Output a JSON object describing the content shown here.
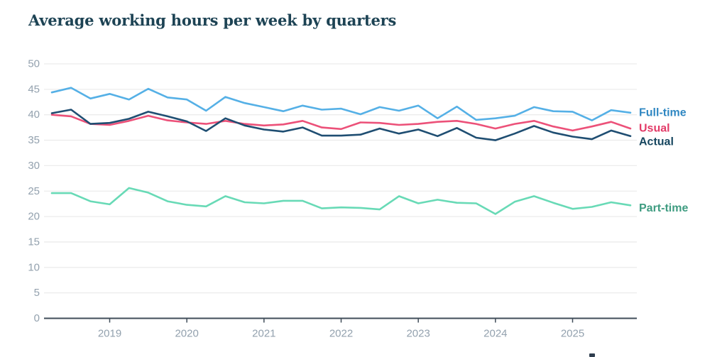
{
  "title": "Average working hours per week by quarters",
  "colors": {
    "title": "#1d4354",
    "grid": "#ececec",
    "axis": "#3f4c58",
    "tick_text": "#93a1ae"
  },
  "chart_data": {
    "type": "line",
    "title": "Average working hours per week by quarters",
    "xlabel": "",
    "ylabel": "",
    "ylim": [
      0,
      50
    ],
    "grid": true,
    "legend_position": "right-end-of-lines",
    "y_ticks": [
      0,
      5,
      10,
      15,
      20,
      25,
      30,
      35,
      40,
      45,
      50
    ],
    "x_ticks": [
      {
        "label": "2019",
        "index": 3
      },
      {
        "label": "2020",
        "index": 7
      },
      {
        "label": "2021",
        "index": 11
      },
      {
        "label": "2022",
        "index": 15
      },
      {
        "label": "2023",
        "index": 19
      },
      {
        "label": "2024",
        "index": 23
      },
      {
        "label": "2025",
        "index": 27
      }
    ],
    "categories": [
      "2018 Q2",
      "2018 Q3",
      "2018 Q4",
      "2019 Q1",
      "2019 Q2",
      "2019 Q3",
      "2019 Q4",
      "2020 Q1",
      "2020 Q2",
      "2020 Q3",
      "2020 Q4",
      "2021 Q1",
      "2021 Q2",
      "2021 Q3",
      "2021 Q4",
      "2022 Q1",
      "2022 Q2",
      "2022 Q3",
      "2022 Q4",
      "2023 Q1",
      "2023 Q2",
      "2023 Q3",
      "2023 Q4",
      "2024 Q1",
      "2024 Q2",
      "2024 Q3",
      "2024 Q4",
      "2025 Q1",
      "2025 Q2",
      "2025 Q3",
      "2025 Q4"
    ],
    "series": [
      {
        "name": "full-time",
        "label": "Full-time",
        "color": "#55b0e6",
        "label_color": "#2f87c2",
        "values": [
          44.4,
          45.3,
          43.2,
          44.1,
          43.0,
          45.1,
          43.4,
          43.0,
          40.8,
          43.5,
          42.3,
          41.5,
          40.7,
          41.8,
          41.0,
          41.2,
          40.1,
          41.5,
          40.8,
          41.8,
          39.3,
          41.6,
          39.0,
          39.3,
          39.8,
          41.5,
          40.7,
          40.6,
          38.9,
          40.9,
          40.4
        ]
      },
      {
        "name": "usual",
        "label": "Usual",
        "color": "#ec5179",
        "label_color": "#e33b68",
        "values": [
          40.0,
          39.7,
          38.2,
          38.0,
          38.8,
          39.8,
          38.9,
          38.5,
          38.2,
          38.8,
          38.2,
          37.9,
          38.1,
          38.8,
          37.5,
          37.2,
          38.5,
          38.4,
          38.0,
          38.2,
          38.6,
          38.8,
          38.2,
          37.3,
          38.2,
          38.8,
          37.7,
          36.9,
          37.7,
          38.6,
          37.3
        ]
      },
      {
        "name": "actual",
        "label": "Actual",
        "color": "#1f4e72",
        "label_color": "#16465f",
        "values": [
          40.3,
          41.0,
          38.2,
          38.4,
          39.2,
          40.6,
          39.7,
          38.7,
          36.8,
          39.3,
          37.9,
          37.1,
          36.7,
          37.5,
          35.9,
          35.9,
          36.1,
          37.3,
          36.3,
          37.1,
          35.8,
          37.4,
          35.5,
          35.0,
          36.3,
          37.8,
          36.5,
          35.7,
          35.2,
          36.9,
          35.8
        ]
      },
      {
        "name": "part-time",
        "label": "Part-time",
        "color": "#68dab6",
        "label_color": "#3f9c81",
        "values": [
          24.6,
          24.6,
          23.0,
          22.4,
          25.6,
          24.7,
          23.0,
          22.3,
          22.0,
          24.0,
          22.8,
          22.6,
          23.1,
          23.1,
          21.6,
          21.8,
          21.7,
          21.4,
          24.0,
          22.6,
          23.3,
          22.7,
          22.6,
          20.5,
          22.9,
          24.0,
          22.7,
          21.5,
          21.9,
          22.8,
          22.2
        ]
      }
    ]
  }
}
